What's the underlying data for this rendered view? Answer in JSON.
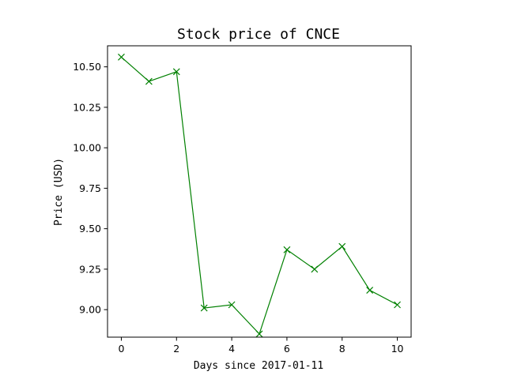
{
  "chart_data": {
    "type": "line",
    "title": "Stock price of CNCE",
    "xlabel": "Days since 2017-01-11",
    "ylabel": "Price (USD)",
    "xlim": [
      -0.5,
      10.5
    ],
    "ylim": [
      8.83,
      10.63
    ],
    "xticks": [
      0,
      2,
      4,
      6,
      8,
      10
    ],
    "xtick_labels": [
      "0",
      "2",
      "4",
      "6",
      "8",
      "10"
    ],
    "yticks": [
      9.0,
      9.25,
      9.5,
      9.75,
      10.0,
      10.25,
      10.5
    ],
    "ytick_labels": [
      "9.00",
      "9.25",
      "9.50",
      "9.75",
      "10.00",
      "10.25",
      "10.50"
    ],
    "grid": false,
    "series": [
      {
        "color": "#008000",
        "marker": "x",
        "x": [
          0,
          1,
          2,
          3,
          4,
          5,
          6,
          7,
          8,
          9,
          10
        ],
        "y": [
          10.56,
          10.41,
          10.47,
          9.01,
          9.03,
          8.85,
          9.37,
          9.25,
          9.39,
          9.12,
          9.03
        ]
      }
    ]
  }
}
